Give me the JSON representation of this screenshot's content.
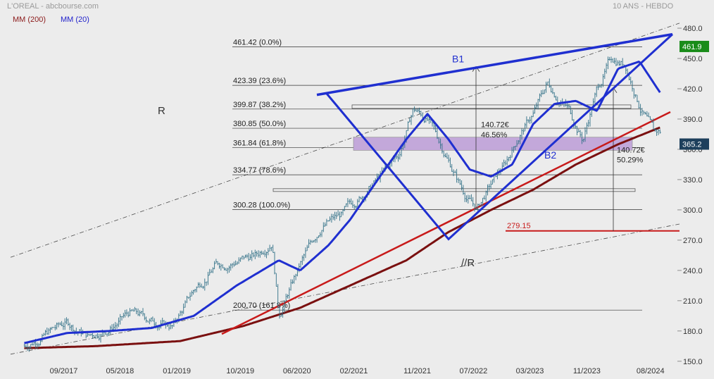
{
  "header": {
    "title_left": "L'OREAL - abcbourse.com",
    "title_right": "10 ANS - HEBDO",
    "legend_mm200": "MM (200)",
    "legend_mm20": "MM (20)"
  },
  "colors": {
    "price": "#2f6f86",
    "mm20": "#1f2fd0",
    "mm200": "#7a1010",
    "trend_red": "#c81a1a",
    "pattern_blue": "#1f2fd0",
    "current_price_badge": "#1d3f5c",
    "high_badge": "#1a8c1a",
    "zone_fill": "#c3a8da"
  },
  "chart_data": {
    "type": "line",
    "title": "L'OREAL - abcbourse.com",
    "subtitle": "10 ANS - HEBDO",
    "xlabel": "",
    "ylabel": "",
    "x_tick_labels": [
      "09/2017",
      "05/2018",
      "01/2019",
      "10/2019",
      "06/2020",
      "02/2021",
      "11/2021",
      "07/2022",
      "03/2023",
      "11/2023",
      "08/2024"
    ],
    "y_ticks": [
      150,
      180,
      210,
      240,
      270,
      300,
      330,
      360,
      390,
      420,
      450,
      480
    ],
    "y_tick_labels": [
      "150.0",
      "180.0",
      "210.0",
      "240.0",
      "270.0",
      "300.0",
      "330.0",
      "360.0",
      "390.0",
      "420.0",
      "450.0",
      "480.0"
    ],
    "ylim": [
      145,
      487
    ],
    "grid": false,
    "current_price": "365.2",
    "high_price": "461.9",
    "series": [
      {
        "name": "L'OREAL",
        "style": "weekly-bars",
        "x": [
          "2017-03",
          "2017-06",
          "2017-09",
          "2017-12",
          "2018-03",
          "2018-06",
          "2018-09",
          "2018-12",
          "2019-03",
          "2019-06",
          "2019-09",
          "2019-12",
          "2020-02",
          "2020-03",
          "2020-06",
          "2020-09",
          "2020-12",
          "2021-02",
          "2021-05",
          "2021-08",
          "2021-10",
          "2021-12",
          "2022-03",
          "2022-05",
          "2022-07",
          "2022-09",
          "2022-11",
          "2023-01",
          "2023-03",
          "2023-05",
          "2023-08",
          "2023-10",
          "2023-12",
          "2024-02",
          "2024-04",
          "2024-06",
          "2024-08",
          "2024-09"
        ],
        "y": [
          165,
          178,
          188,
          175,
          183,
          198,
          190,
          185,
          220,
          245,
          250,
          255,
          272,
          198,
          245,
          285,
          295,
          310,
          330,
          355,
          400,
          390,
          350,
          320,
          300,
          325,
          345,
          375,
          395,
          425,
          400,
          370,
          420,
          450,
          445,
          405,
          375,
          376
        ]
      },
      {
        "name": "MM (20)",
        "x": [
          "2017-03",
          "2017-09",
          "2018-03",
          "2018-09",
          "2019-03",
          "2019-09",
          "2020-03",
          "2020-06",
          "2020-10",
          "2021-01",
          "2021-05",
          "2021-09",
          "2021-12",
          "2022-03",
          "2022-06",
          "2022-09",
          "2022-12",
          "2023-03",
          "2023-06",
          "2023-09",
          "2023-12",
          "2024-03",
          "2024-06",
          "2024-09"
        ],
        "y": [
          168,
          178,
          180,
          183,
          195,
          225,
          250,
          240,
          265,
          290,
          330,
          370,
          395,
          370,
          340,
          333,
          345,
          385,
          405,
          408,
          398,
          440,
          447,
          415
        ]
      },
      {
        "name": "MM (200)",
        "x": [
          "2017-03",
          "2018-01",
          "2019-01",
          "2019-10",
          "2020-06",
          "2021-01",
          "2021-09",
          "2022-03",
          "2022-09",
          "2023-03",
          "2023-09",
          "2024-03",
          "2024-09"
        ],
        "y": [
          163,
          165,
          170,
          185,
          203,
          225,
          250,
          278,
          300,
          320,
          345,
          365,
          382
        ]
      }
    ],
    "fibonacci_levels": [
      {
        "value": 461.42,
        "label": "461.42  (0.0%)"
      },
      {
        "value": 423.39,
        "label": "423.39  (23.6%)"
      },
      {
        "value": 399.87,
        "label": "399.87  (38.2%)"
      },
      {
        "value": 380.85,
        "label": "380.85  (50.0%)"
      },
      {
        "value": 361.84,
        "label": "361.84  (61.8%)"
      },
      {
        "value": 334.77,
        "label": "334.77  (78.6%)"
      },
      {
        "value": 300.28,
        "label": "300.28  (100.0%)"
      },
      {
        "value": 200.7,
        "label": "200.70  (161.8%)"
      }
    ],
    "annotations": [
      {
        "text": "R",
        "kind": "channel-label"
      },
      {
        "text": "//R",
        "kind": "channel-label"
      },
      {
        "text": "B1",
        "kind": "pattern-label"
      },
      {
        "text": "B2",
        "kind": "pattern-label"
      },
      {
        "text": "140.72€",
        "kind": "measure"
      },
      {
        "text": "46.56%",
        "kind": "measure"
      },
      {
        "text": "140.72€",
        "kind": "measure"
      },
      {
        "text": "50.29%",
        "kind": "measure"
      },
      {
        "text": "279.15",
        "kind": "target",
        "value": 279.15
      }
    ]
  }
}
